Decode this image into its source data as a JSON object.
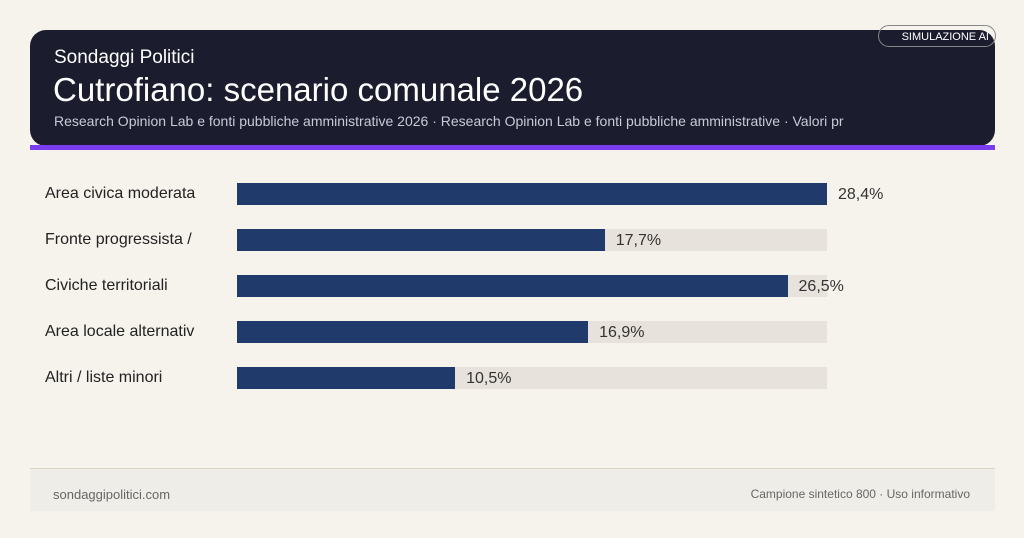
{
  "header": {
    "brand": "Sondaggi Politici",
    "badge": "SIMULAZIONE AI",
    "source": "Research Opinion Lab e fonti pubbliche amministrative 2026 · Research Opinion Lab e fonti pubbliche amministrative · Valori pr"
  },
  "chart_data": {
    "type": "bar",
    "orientation": "horizontal",
    "title": "Cutrofiano: scenario comunale 2026",
    "categories": [
      "Area civica moderata",
      "Fronte progressista /",
      "Civiche territoriali",
      "Area locale alternativ",
      "Altri / liste minori"
    ],
    "values": [
      28.4,
      17.7,
      26.5,
      16.9,
      10.5
    ],
    "value_labels": [
      "28,4%",
      "17,7%",
      "26,5%",
      "16,9%",
      "10,5%"
    ],
    "xlim": [
      0,
      28.4
    ],
    "unit": "%",
    "grid": false,
    "bar_color": "#1f3a6b",
    "track_color": "#e8e2dc"
  },
  "footer": {
    "site": "sondaggipolitici.com",
    "note": "Campione sintetico 800 · Uso informativo"
  }
}
